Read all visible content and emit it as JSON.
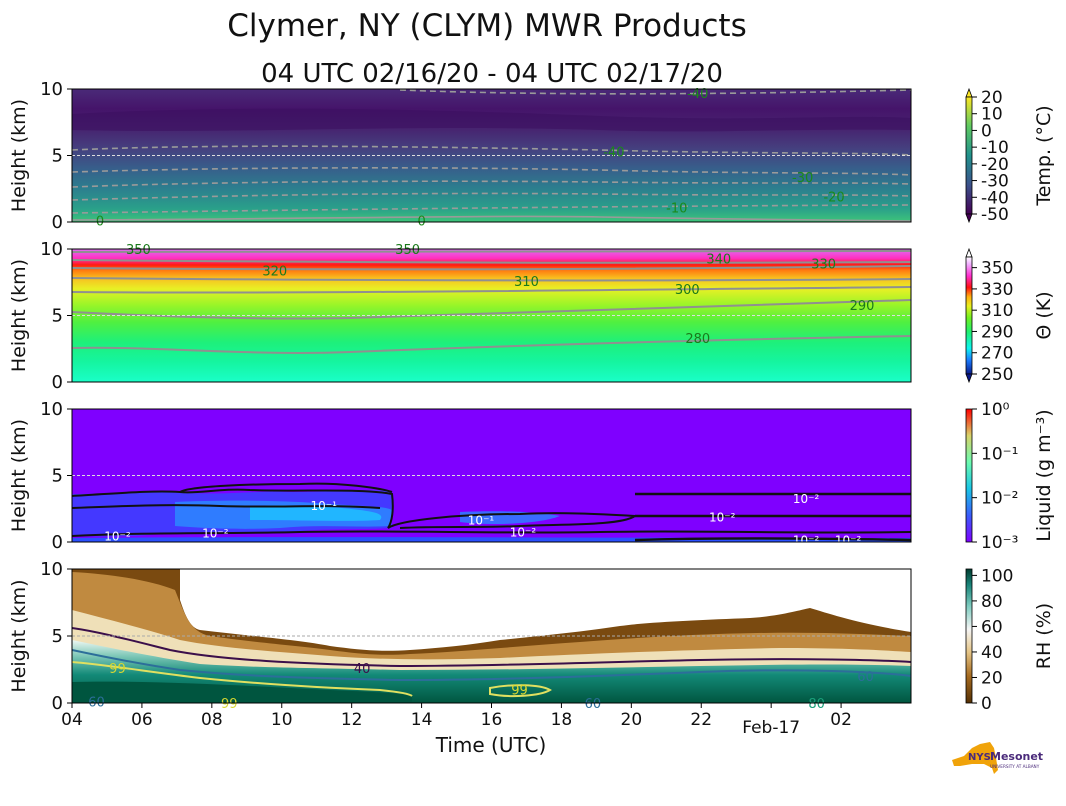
{
  "title": "Clymer, NY (CLYM) MWR Products",
  "subtitle": "04 UTC 02/16/20 - 04 UTC 02/17/20",
  "chart_data": [
    {
      "type": "heatmap",
      "panel": "temperature",
      "ylabel": "Height (km)",
      "ylim": [
        0,
        10
      ],
      "yticks": [
        "0",
        "5",
        "10"
      ],
      "colorbar": {
        "label": "Temp. (°C)",
        "range": [
          -50,
          20
        ],
        "ticks": [
          "20",
          "10",
          "0",
          "-10",
          "-20",
          "-30",
          "-40",
          "-50"
        ]
      },
      "contours": [
        {
          "label": "0",
          "t": 0.8,
          "h": 0.1
        },
        {
          "label": "0",
          "t": 10.0,
          "h": 0.1
        },
        {
          "label": "-10",
          "t": 17.3,
          "h": 1.1
        },
        {
          "label": "-20",
          "t": 21.8,
          "h": 1.9
        },
        {
          "label": "-30",
          "t": 20.9,
          "h": 3.4
        },
        {
          "label": "-40",
          "t": 15.5,
          "h": 5.3
        },
        {
          "label": "-40",
          "t": 17.9,
          "h": 9.7
        }
      ]
    },
    {
      "type": "heatmap",
      "panel": "potential-temperature",
      "ylabel": "Height (km)",
      "ylim": [
        0,
        10
      ],
      "yticks": [
        "0",
        "5",
        "10"
      ],
      "colorbar": {
        "label": "Θ (K)",
        "range": [
          250,
          360
        ],
        "ticks": [
          "350",
          "330",
          "310",
          "290",
          "270",
          "250"
        ]
      },
      "contours": [
        {
          "label": "280",
          "t": 17.9,
          "h": 3.3
        },
        {
          "label": "290",
          "t": 22.6,
          "h": 5.8
        },
        {
          "label": "300",
          "t": 17.6,
          "h": 7.0
        },
        {
          "label": "310",
          "t": 13.0,
          "h": 7.6
        },
        {
          "label": "320",
          "t": 5.8,
          "h": 8.4
        },
        {
          "label": "330",
          "t": 21.5,
          "h": 8.9
        },
        {
          "label": "340",
          "t": 18.5,
          "h": 9.3
        },
        {
          "label": "350",
          "t": 1.9,
          "h": 10.0
        },
        {
          "label": "350",
          "t": 9.6,
          "h": 10.0
        }
      ]
    },
    {
      "type": "heatmap",
      "panel": "liquid-water",
      "ylabel": "Height (km)",
      "ylim": [
        0,
        10
      ],
      "yticks": [
        "0",
        "5",
        "10"
      ],
      "colorbar": {
        "label": "Liquid (g m⁻³)",
        "scale": "log",
        "range": [
          0.001,
          1
        ],
        "ticks": [
          "10⁰",
          "10⁻¹",
          "10⁻²",
          "10⁻³"
        ]
      },
      "contours": [
        {
          "label": "10⁻¹",
          "t": 7.2,
          "h": 2.8
        },
        {
          "label": "10⁻¹",
          "t": 11.7,
          "h": 1.7
        },
        {
          "label": "10⁻²",
          "t": 12.9,
          "h": 0.8
        },
        {
          "label": "10⁻²",
          "t": 18.6,
          "h": 1.9
        },
        {
          "label": "10⁻²",
          "t": 21.0,
          "h": 3.3
        },
        {
          "label": "10⁻²",
          "t": 21.0,
          "h": 0.2
        },
        {
          "label": "10⁻²",
          "t": 22.2,
          "h": 0.2
        },
        {
          "label": "10⁻²",
          "t": 1.3,
          "h": 0.5
        },
        {
          "label": "10⁻²",
          "t": 4.1,
          "h": 0.7
        }
      ]
    },
    {
      "type": "heatmap",
      "panel": "relative-humidity",
      "ylabel": "Height (km)",
      "xlabel": "Time (UTC)",
      "ylim": [
        0,
        10
      ],
      "yticks": [
        "0",
        "5",
        "10"
      ],
      "xticks": [
        "04",
        "06",
        "08",
        "10",
        "12",
        "14",
        "16",
        "18",
        "20",
        "22",
        "02"
      ],
      "xtick_extra": "Feb-17",
      "colorbar": {
        "label": "RH (%)",
        "range": [
          0,
          105
        ],
        "ticks": [
          "100",
          "80",
          "60",
          "40",
          "20",
          "0"
        ]
      },
      "contours": [
        {
          "label": "40",
          "t": 8.3,
          "h": 2.6
        },
        {
          "label": "60",
          "t": 22.7,
          "h": 2.0
        },
        {
          "label": "60",
          "t": 14.9,
          "h": -0.5
        },
        {
          "label": "60",
          "t": 0.7,
          "h": 0.1
        },
        {
          "label": "80",
          "t": 21.3,
          "h": 0.0
        },
        {
          "label": "99",
          "t": 1.3,
          "h": 2.6
        },
        {
          "label": "99",
          "t": 4.5,
          "h": -0.1
        },
        {
          "label": "99",
          "t": 12.8,
          "h": 1.0
        }
      ]
    }
  ],
  "logo": {
    "text": "NYS Mesonet",
    "sub": "UNIVERSITY AT ALBANY",
    "colors": {
      "state": "#f0a30a",
      "text": "#4a2a7a"
    }
  }
}
